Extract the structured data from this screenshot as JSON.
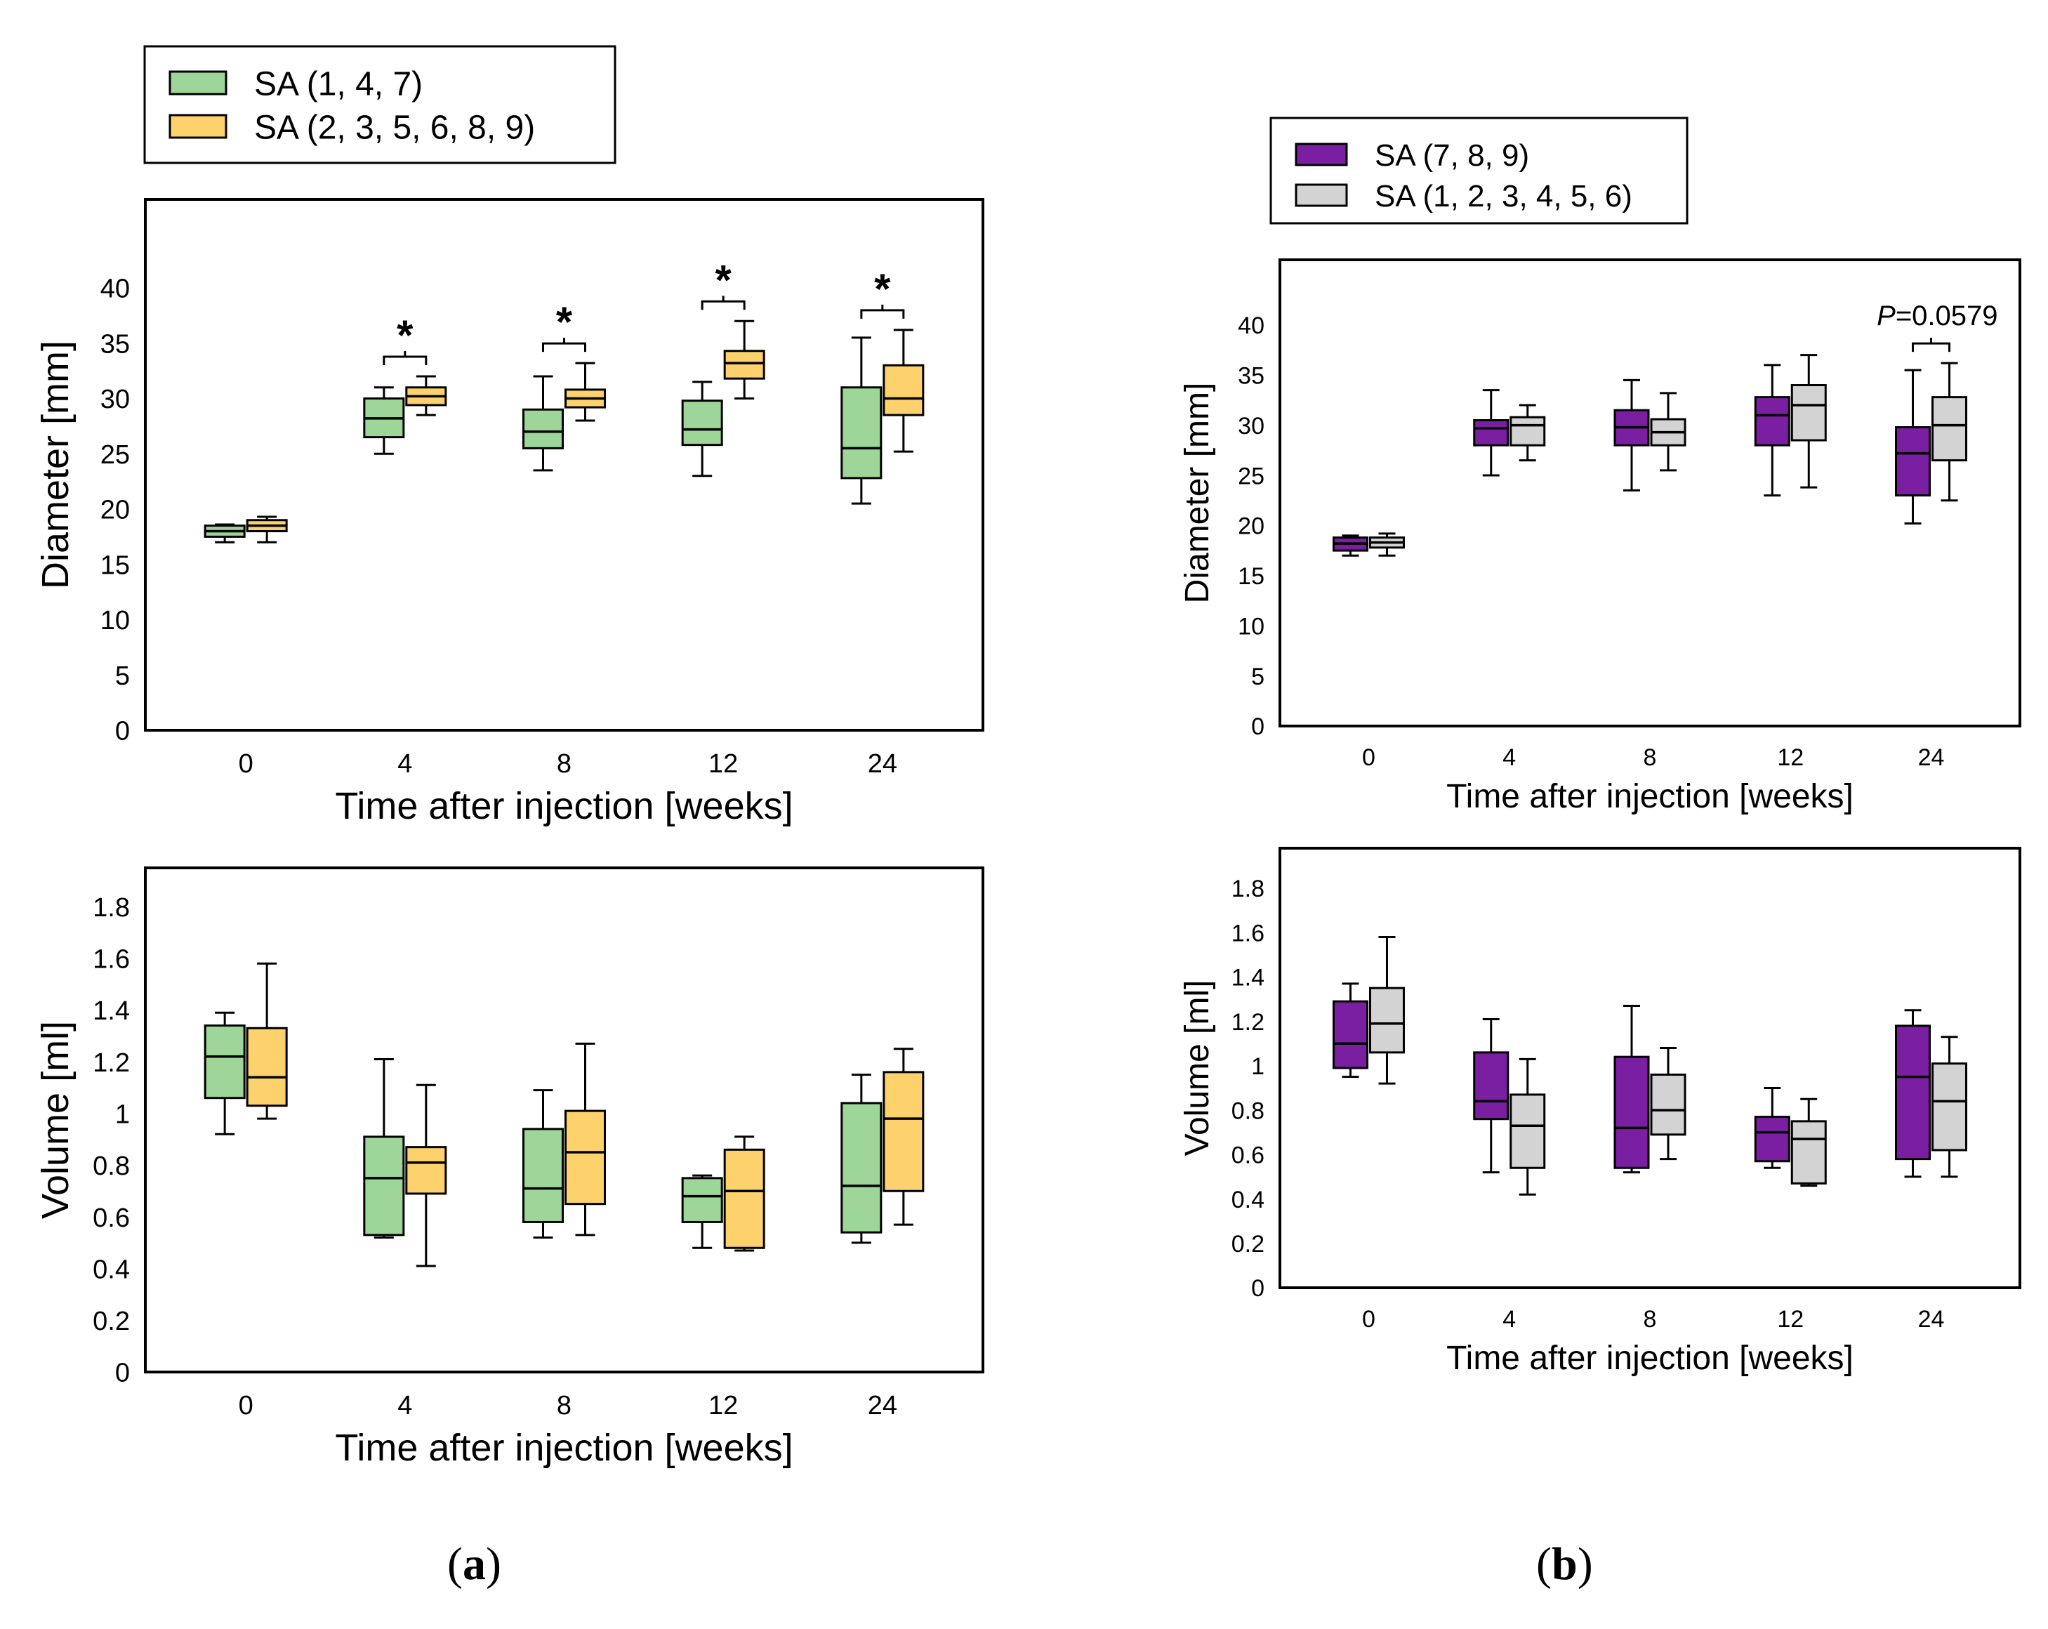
{
  "panels": [
    {
      "label": "a",
      "legend": [
        {
          "name": "SA (1, 4, 7)",
          "color": "#9ed69a"
        },
        {
          "name": "SA (2, 3, 5, 6, 8, 9)",
          "color": "#fdd26d"
        }
      ],
      "charts": [
        {
          "type": "box",
          "ylabel": "Diameter [mm]",
          "xlabel": "Time after injection [weeks]",
          "categories": [
            "0",
            "4",
            "8",
            "12",
            "24"
          ],
          "ylim": [
            0,
            48
          ],
          "yticks": [
            "0",
            "5",
            "10",
            "15",
            "20",
            "25",
            "30",
            "35",
            "40"
          ],
          "series": [
            {
              "name": "SA (1, 4, 7)",
              "color": "#9ed69a",
              "boxes": [
                {
                  "min": 17.0,
                  "q1": 17.5,
                  "median": 18.0,
                  "q3": 18.5,
                  "max": 18.6
                },
                {
                  "min": 25.0,
                  "q1": 26.5,
                  "median": 28.2,
                  "q3": 30.0,
                  "max": 31.0
                },
                {
                  "min": 23.5,
                  "q1": 25.5,
                  "median": 27.0,
                  "q3": 29.0,
                  "max": 32.0
                },
                {
                  "min": 23.0,
                  "q1": 25.8,
                  "median": 27.2,
                  "q3": 29.8,
                  "max": 31.5
                },
                {
                  "min": 20.5,
                  "q1": 22.8,
                  "median": 25.5,
                  "q3": 31.0,
                  "max": 35.5
                }
              ]
            },
            {
              "name": "SA (2, 3, 5, 6, 8, 9)",
              "color": "#fdd26d",
              "boxes": [
                {
                  "min": 17.0,
                  "q1": 18.0,
                  "median": 18.5,
                  "q3": 19.0,
                  "max": 19.3
                },
                {
                  "min": 28.5,
                  "q1": 29.4,
                  "median": 30.2,
                  "q3": 31.0,
                  "max": 32.0
                },
                {
                  "min": 28.0,
                  "q1": 29.2,
                  "median": 30.0,
                  "q3": 30.8,
                  "max": 33.2
                },
                {
                  "min": 30.0,
                  "q1": 31.8,
                  "median": 33.2,
                  "q3": 34.3,
                  "max": 37.0
                },
                {
                  "min": 25.2,
                  "q1": 28.5,
                  "median": 30.0,
                  "q3": 33.0,
                  "max": 36.2
                }
              ]
            }
          ],
          "annotations": [
            {
              "category": "4",
              "text": "*"
            },
            {
              "category": "8",
              "text": "*"
            },
            {
              "category": "12",
              "text": "*"
            },
            {
              "category": "24",
              "text": "*"
            }
          ]
        },
        {
          "type": "box",
          "ylabel": "Volume [ml]",
          "xlabel": "Time after injection [weeks]",
          "categories": [
            "0",
            "4",
            "8",
            "12",
            "24"
          ],
          "ylim": [
            0,
            1.95
          ],
          "yticks": [
            "0",
            "0.2",
            "0.4",
            "0.6",
            "0.8",
            "1",
            "1.2",
            "1.4",
            "1.6",
            "1.8"
          ],
          "series": [
            {
              "name": "SA (1, 4, 7)",
              "color": "#9ed69a",
              "boxes": [
                {
                  "min": 0.92,
                  "q1": 1.06,
                  "median": 1.22,
                  "q3": 1.34,
                  "max": 1.39
                },
                {
                  "min": 0.52,
                  "q1": 0.53,
                  "median": 0.75,
                  "q3": 0.91,
                  "max": 1.21
                },
                {
                  "min": 0.52,
                  "q1": 0.58,
                  "median": 0.71,
                  "q3": 0.94,
                  "max": 1.09
                },
                {
                  "min": 0.48,
                  "q1": 0.58,
                  "median": 0.68,
                  "q3": 0.75,
                  "max": 0.76
                },
                {
                  "min": 0.5,
                  "q1": 0.54,
                  "median": 0.72,
                  "q3": 1.04,
                  "max": 1.15
                }
              ]
            },
            {
              "name": "SA (2, 3, 5, 6, 8, 9)",
              "color": "#fdd26d",
              "boxes": [
                {
                  "min": 0.98,
                  "q1": 1.03,
                  "median": 1.14,
                  "q3": 1.33,
                  "max": 1.58
                },
                {
                  "min": 0.41,
                  "q1": 0.69,
                  "median": 0.81,
                  "q3": 0.87,
                  "max": 1.11
                },
                {
                  "min": 0.53,
                  "q1": 0.65,
                  "median": 0.85,
                  "q3": 1.01,
                  "max": 1.27
                },
                {
                  "min": 0.47,
                  "q1": 0.48,
                  "median": 0.7,
                  "q3": 0.86,
                  "max": 0.91
                },
                {
                  "min": 0.57,
                  "q1": 0.7,
                  "median": 0.98,
                  "q3": 1.16,
                  "max": 1.25
                }
              ]
            }
          ],
          "annotations": []
        }
      ]
    },
    {
      "label": "b",
      "legend": [
        {
          "name": "SA (7, 8, 9)",
          "color": "#7b1fa2"
        },
        {
          "name": "SA (1, 2, 3, 4, 5, 6)",
          "color": "#d3d3d3"
        }
      ],
      "charts": [
        {
          "type": "box",
          "ylabel": "Diameter [mm]",
          "xlabel": "Time after injection [weeks]",
          "categories": [
            "0",
            "4",
            "8",
            "12",
            "24"
          ],
          "ylim": [
            0,
            46.5
          ],
          "yticks": [
            "0",
            "5",
            "10",
            "15",
            "20",
            "25",
            "30",
            "35",
            "40"
          ],
          "series": [
            {
              "name": "SA (7, 8, 9)",
              "color": "#7b1fa2",
              "boxes": [
                {
                  "min": 17.0,
                  "q1": 17.5,
                  "median": 18.2,
                  "q3": 18.8,
                  "max": 19.0
                },
                {
                  "min": 25.0,
                  "q1": 28.0,
                  "median": 29.7,
                  "q3": 30.5,
                  "max": 33.5
                },
                {
                  "min": 23.5,
                  "q1": 28.0,
                  "median": 29.8,
                  "q3": 31.5,
                  "max": 34.5
                },
                {
                  "min": 23.0,
                  "q1": 28.0,
                  "median": 31.0,
                  "q3": 32.8,
                  "max": 36.0
                },
                {
                  "min": 20.2,
                  "q1": 23.0,
                  "median": 27.2,
                  "q3": 29.8,
                  "max": 35.5
                }
              ]
            },
            {
              "name": "SA (1, 2, 3, 4, 5, 6)",
              "color": "#d3d3d3",
              "boxes": [
                {
                  "min": 17.0,
                  "q1": 17.8,
                  "median": 18.3,
                  "q3": 18.8,
                  "max": 19.2
                },
                {
                  "min": 26.5,
                  "q1": 28.0,
                  "median": 30.0,
                  "q3": 30.8,
                  "max": 32.0
                },
                {
                  "min": 25.5,
                  "q1": 28.0,
                  "median": 29.3,
                  "q3": 30.6,
                  "max": 33.2
                },
                {
                  "min": 23.8,
                  "q1": 28.5,
                  "median": 32.0,
                  "q3": 34.0,
                  "max": 37.0
                },
                {
                  "min": 22.5,
                  "q1": 26.5,
                  "median": 30.0,
                  "q3": 32.8,
                  "max": 36.2
                }
              ]
            }
          ],
          "annotations": [
            {
              "category": "24",
              "text": "P=0.0579",
              "italic_prefix": "P",
              "rest": "=0.0579"
            }
          ]
        },
        {
          "type": "box",
          "ylabel": "Volume [ml]",
          "xlabel": "Time after injection [weeks]",
          "categories": [
            "0",
            "4",
            "8",
            "12",
            "24"
          ],
          "ylim": [
            0,
            1.98
          ],
          "yticks": [
            "0",
            "0.2",
            "0.4",
            "0.6",
            "0.8",
            "1",
            "1.2",
            "1.4",
            "1.6",
            "1.8"
          ],
          "series": [
            {
              "name": "SA (7, 8, 9)",
              "color": "#7b1fa2",
              "boxes": [
                {
                  "min": 0.95,
                  "q1": 0.99,
                  "median": 1.1,
                  "q3": 1.29,
                  "max": 1.37
                },
                {
                  "min": 0.52,
                  "q1": 0.76,
                  "median": 0.84,
                  "q3": 1.06,
                  "max": 1.21
                },
                {
                  "min": 0.52,
                  "q1": 0.54,
                  "median": 0.72,
                  "q3": 1.04,
                  "max": 1.27
                },
                {
                  "min": 0.54,
                  "q1": 0.57,
                  "median": 0.7,
                  "q3": 0.77,
                  "max": 0.9
                },
                {
                  "min": 0.5,
                  "q1": 0.58,
                  "median": 0.95,
                  "q3": 1.18,
                  "max": 1.25
                }
              ]
            },
            {
              "name": "SA (1, 2, 3, 4, 5, 6)",
              "color": "#d3d3d3",
              "boxes": [
                {
                  "min": 0.92,
                  "q1": 1.06,
                  "median": 1.19,
                  "q3": 1.35,
                  "max": 1.58
                },
                {
                  "min": 0.42,
                  "q1": 0.54,
                  "median": 0.73,
                  "q3": 0.87,
                  "max": 1.03
                },
                {
                  "min": 0.58,
                  "q1": 0.69,
                  "median": 0.8,
                  "q3": 0.96,
                  "max": 1.08
                },
                {
                  "min": 0.46,
                  "q1": 0.47,
                  "median": 0.67,
                  "q3": 0.75,
                  "max": 0.85
                },
                {
                  "min": 0.5,
                  "q1": 0.62,
                  "median": 0.84,
                  "q3": 1.01,
                  "max": 1.13
                }
              ]
            }
          ],
          "annotations": []
        }
      ]
    }
  ]
}
